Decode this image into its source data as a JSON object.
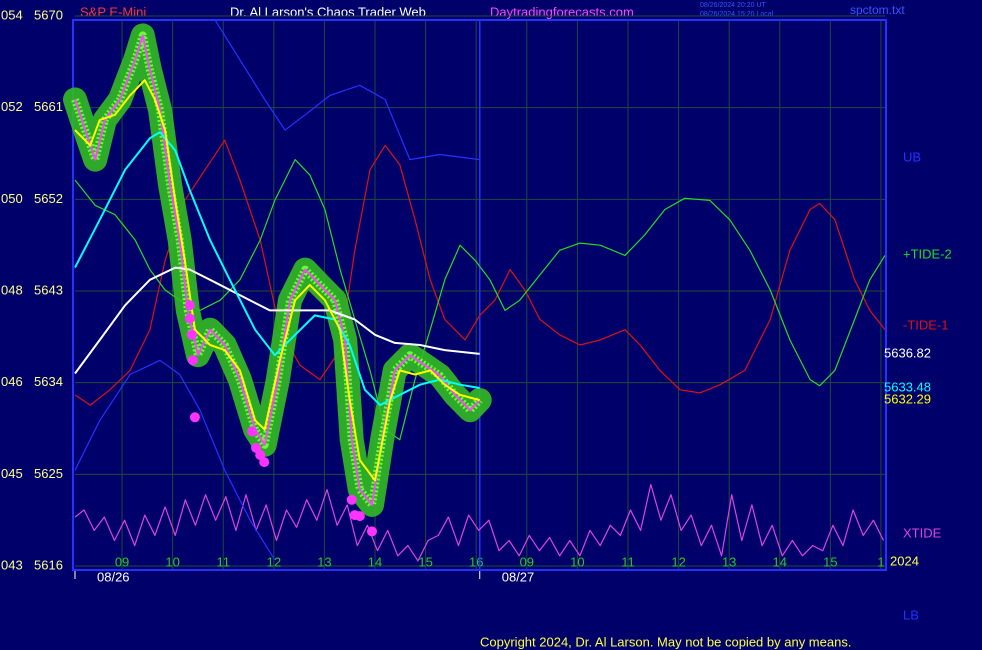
{
  "chart_data": {
    "type": "line",
    "symbol": "S&P E-Mini",
    "title": "Dr. Al Larson's Chaos Trader Web",
    "site": "Daytradingforecasts.com",
    "timestamps": [
      "08/26/2024 20:20 UT",
      "08/26/2024 15:20 Local"
    ],
    "file": "spctom.txt",
    "copyright": "Copyright 2024, Dr. Al Larson. May not be copied by any means.",
    "year": "2024",
    "ylim": [
      5616,
      5670
    ],
    "yticks": [
      5616,
      5625,
      5634,
      5643,
      5652,
      5661,
      5670
    ],
    "left_codes": [
      "043",
      "045",
      "046",
      "048",
      "050",
      "052",
      "054"
    ],
    "xlim": [
      -0.93,
      15.08
    ],
    "xticks": [
      {
        "value": 0,
        "label": "09"
      },
      {
        "value": 1,
        "label": "10"
      },
      {
        "value": 2,
        "label": "11"
      },
      {
        "value": 3,
        "label": "12"
      },
      {
        "value": 4,
        "label": "13"
      },
      {
        "value": 5,
        "label": "14"
      },
      {
        "value": 6,
        "label": "15"
      },
      {
        "value": 7,
        "label": "16"
      },
      {
        "value": 8,
        "label": "09"
      },
      {
        "value": 9,
        "label": "10"
      },
      {
        "value": 10,
        "label": "11"
      },
      {
        "value": 11,
        "label": "12"
      },
      {
        "value": 12,
        "label": "13"
      },
      {
        "value": 13,
        "label": "14"
      },
      {
        "value": 14,
        "label": "15"
      },
      {
        "value": 15,
        "label": "1"
      }
    ],
    "date_ticks": [
      {
        "value": -0.93,
        "label": "08/26"
      },
      {
        "value": 7.07,
        "label": "08/27"
      }
    ],
    "grid": true,
    "series": [
      {
        "color": "#ff44ff",
        "glow": true,
        "x": [
          -0.93,
          -0.73,
          -0.53,
          -0.34,
          -0.04,
          0.26,
          0.41,
          0.55,
          0.75,
          0.95,
          1.14,
          1.3,
          1.5,
          1.74,
          2.03,
          2.33,
          2.63,
          2.82,
          3.08,
          3.32,
          3.62,
          3.91,
          4.21,
          4.41,
          4.54,
          4.7,
          4.94,
          5.14,
          5.39,
          5.69,
          5.99,
          6.28,
          6.58,
          6.88,
          7.07
        ],
        "values": [
          5661.8,
          5658.8,
          5655.9,
          5659.8,
          5661.8,
          5665.7,
          5668.1,
          5664.7,
          5660.8,
          5653.4,
          5648.0,
          5641.1,
          5636.7,
          5639.2,
          5637.7,
          5634.3,
          5629.4,
          5627.9,
          5634.3,
          5642.1,
          5645.1,
          5643.6,
          5642.1,
          5638.2,
          5628.4,
          5623.5,
          5622.0,
          5628.4,
          5635.2,
          5636.7,
          5635.7,
          5634.7,
          5632.8,
          5631.3,
          5632.3
        ]
      },
      {
        "color": "#ffff00",
        "show_last": true,
        "x": [
          -0.93,
          -0.63,
          -0.44,
          -0.14,
          0.16,
          0.45,
          0.65,
          0.85,
          1.05,
          1.24,
          1.44,
          1.74,
          2.03,
          2.33,
          2.63,
          2.82,
          3.12,
          3.42,
          3.71,
          4.01,
          4.31,
          4.5,
          4.7,
          5.0,
          5.3,
          5.49,
          5.79,
          6.09,
          6.38,
          6.68,
          7.07
        ],
        "values": [
          5658.8,
          5657.3,
          5659.8,
          5660.3,
          5662.2,
          5663.7,
          5661.8,
          5658.8,
          5651.9,
          5646.0,
          5639.2,
          5637.7,
          5637.2,
          5635.2,
          5630.3,
          5629.4,
          5636.2,
          5642.1,
          5643.6,
          5642.1,
          5639.2,
          5632.3,
          5626.4,
          5624.4,
          5632.3,
          5635.2,
          5634.8,
          5635.2,
          5633.8,
          5632.8,
          5632.29
        ]
      },
      {
        "color": "#00ffff",
        "show_last": true,
        "x": [
          -0.93,
          -0.44,
          0.06,
          0.55,
          0.75,
          1.05,
          1.34,
          1.74,
          2.13,
          2.63,
          3.02,
          3.42,
          3.81,
          4.21,
          4.5,
          4.8,
          5.1,
          5.49,
          5.89,
          6.28,
          6.68,
          7.07
        ],
        "values": [
          5645.3,
          5650.0,
          5654.9,
          5658.0,
          5658.6,
          5656.8,
          5652.9,
          5648.0,
          5644.1,
          5639.2,
          5636.7,
          5638.7,
          5640.6,
          5640.2,
          5637.7,
          5633.3,
          5631.8,
          5632.8,
          5633.8,
          5634.3,
          5633.8,
          5633.48
        ]
      },
      {
        "color": "#ffffff",
        "show_last": true,
        "x": [
          -0.93,
          -0.44,
          0.06,
          0.55,
          1.05,
          1.34,
          1.74,
          2.33,
          2.92,
          3.52,
          4.11,
          4.6,
          5.0,
          5.39,
          5.89,
          6.38,
          7.07
        ],
        "values": [
          5634.9,
          5638.2,
          5641.6,
          5644.1,
          5645.3,
          5645.1,
          5644.1,
          5642.6,
          5641.1,
          5641.1,
          5641.1,
          5640.2,
          5638.7,
          5637.9,
          5637.7,
          5637.2,
          5636.82
        ]
      },
      {
        "name": "UB",
        "color": "#2233ff",
        "x": [
          1.84,
          2.33,
          2.82,
          3.22,
          3.62,
          4.11,
          4.7,
          5.2,
          5.69,
          6.28,
          7.07
        ],
        "values": [
          5669.6,
          5665.7,
          5661.8,
          5658.8,
          5660.3,
          5662.2,
          5663.2,
          5661.8,
          5655.9,
          5656.4,
          5655.9
        ]
      },
      {
        "name": "LB",
        "color": "#2233ff",
        "x": [
          -0.93,
          -0.44,
          0.16,
          0.75,
          1.14,
          1.54,
          2.03,
          2.53,
          3.02
        ],
        "values": [
          5625.4,
          5630.3,
          5634.8,
          5636.2,
          5634.8,
          5631.3,
          5625.4,
          5620.5,
          5616.6
        ]
      },
      {
        "name": "-TIDE-1",
        "color": "#dd1111",
        "x": [
          -0.93,
          -0.63,
          -0.24,
          0.16,
          0.55,
          0.85,
          1.24,
          1.64,
          2.03,
          2.33,
          2.73,
          3.12,
          3.52,
          3.91,
          4.31,
          4.6,
          4.9,
          5.2,
          5.49,
          5.79,
          6.09,
          6.38,
          6.78,
          7.07,
          7.37,
          7.67,
          7.96,
          8.26,
          8.65,
          9.05,
          9.45,
          9.94,
          10.24,
          10.63,
          11.03,
          11.42,
          11.82,
          12.31,
          12.81,
          13.2,
          13.6,
          13.79,
          14.09,
          14.48,
          14.78,
          15.08
        ],
        "values": [
          5632.8,
          5631.8,
          5633.3,
          5635.2,
          5639.2,
          5646.0,
          5651.9,
          5654.9,
          5657.8,
          5653.9,
          5648.0,
          5639.2,
          5635.7,
          5634.3,
          5637.2,
          5647.0,
          5654.9,
          5657.3,
          5655.4,
          5650.0,
          5644.1,
          5640.2,
          5638.2,
          5640.6,
          5642.1,
          5645.1,
          5643.1,
          5640.2,
          5638.7,
          5637.7,
          5638.2,
          5639.2,
          5637.7,
          5635.2,
          5633.3,
          5633.0,
          5633.8,
          5635.2,
          5640.2,
          5647.0,
          5651.0,
          5651.6,
          5650.0,
          5644.1,
          5641.1,
          5639.2
        ]
      },
      {
        "name": "+TIDE-2",
        "color": "#22dd22",
        "x": [
          -0.93,
          -0.53,
          -0.14,
          0.26,
          0.55,
          0.85,
          1.14,
          1.54,
          1.94,
          2.33,
          2.73,
          3.02,
          3.42,
          3.71,
          4.01,
          4.31,
          4.6,
          4.9,
          5.2,
          5.49,
          5.79,
          6.09,
          6.38,
          6.68,
          6.98,
          7.27,
          7.57,
          7.86,
          8.26,
          8.65,
          9.05,
          9.45,
          9.94,
          10.33,
          10.73,
          11.12,
          11.62,
          12.01,
          12.41,
          12.81,
          13.2,
          13.6,
          13.79,
          14.09,
          14.48,
          14.78,
          15.08
        ],
        "values": [
          5653.9,
          5651.4,
          5650.5,
          5648.0,
          5645.1,
          5643.1,
          5642.1,
          5641.1,
          5642.1,
          5644.1,
          5648.0,
          5651.9,
          5655.9,
          5654.4,
          5651.0,
          5645.1,
          5640.2,
          5635.2,
          5629.4,
          5628.4,
          5634.3,
          5639.2,
          5644.1,
          5647.5,
          5646.0,
          5644.1,
          5641.1,
          5642.1,
          5644.6,
          5647.0,
          5647.7,
          5647.5,
          5646.5,
          5648.5,
          5651.0,
          5652.1,
          5651.9,
          5650.0,
          5647.0,
          5643.1,
          5638.2,
          5634.3,
          5633.7,
          5635.2,
          5640.2,
          5644.1,
          5646.5
        ]
      },
      {
        "name": "XTIDE",
        "color": "#dd44dd",
        "x": [
          -0.93,
          -0.75,
          -0.55,
          -0.35,
          -0.15,
          0.05,
          0.25,
          0.45,
          0.65,
          0.85,
          1.05,
          1.25,
          1.45,
          1.65,
          1.85,
          2.05,
          2.25,
          2.45,
          2.65,
          2.85,
          3.05,
          3.25,
          3.45,
          3.65,
          3.85,
          4.05,
          4.25,
          4.45,
          4.65,
          4.85,
          5.05,
          5.25,
          5.45,
          5.65,
          5.85,
          6.05,
          6.25,
          6.45,
          6.65,
          6.85,
          7.05,
          7.25,
          7.45,
          7.65,
          7.85,
          8.05,
          8.25,
          8.45,
          8.65,
          8.85,
          9.05,
          9.25,
          9.45,
          9.65,
          9.85,
          10.05,
          10.25,
          10.45,
          10.65,
          10.85,
          11.05,
          11.25,
          11.45,
          11.65,
          11.85,
          12.05,
          12.25,
          12.45,
          12.65,
          12.85,
          13.05,
          13.25,
          13.45,
          13.65,
          13.85,
          14.05,
          14.25,
          14.45,
          14.65,
          14.85,
          15.05
        ],
        "values": [
          5620.8,
          5621.5,
          5619.5,
          5620.8,
          5618.5,
          5620.5,
          5618.0,
          5621.0,
          5619.0,
          5621.8,
          5619.0,
          5622.5,
          5620.0,
          5623.0,
          5620.5,
          5622.8,
          5619.5,
          5623.0,
          5619.5,
          5622.0,
          5618.5,
          5621.5,
          5619.8,
          5622.5,
          5620.5,
          5623.5,
          5620.0,
          5622.0,
          5618.0,
          5620.0,
          5617.5,
          5619.5,
          5617.0,
          5618.0,
          5616.5,
          5618.5,
          5619.0,
          5620.8,
          5618.0,
          5621.0,
          5619.5,
          5620.5,
          5617.5,
          5618.5,
          5617.0,
          5619.0,
          5617.5,
          5618.8,
          5617.0,
          5618.5,
          5617.0,
          5619.5,
          5618.0,
          5620.0,
          5619.0,
          5621.5,
          5619.5,
          5624.0,
          5620.5,
          5623.0,
          5619.5,
          5621.0,
          5618.0,
          5620.0,
          5617.0,
          5623.0,
          5618.5,
          5622.0,
          5618.0,
          5620.0,
          5617.0,
          5618.5,
          5617.0,
          5618.0,
          5617.5,
          5620.0,
          5618.0,
          5621.5,
          5619.0,
          5620.5,
          5618.5
        ]
      }
    ],
    "markers": {
      "color": "#ff33ff",
      "x": [
        1.34,
        1.34,
        1.38,
        1.4,
        1.44,
        2.57,
        2.65,
        2.73,
        2.81,
        4.54,
        4.6,
        4.7,
        4.94
      ],
      "values": [
        5641.6,
        5640.3,
        5638.7,
        5636.2,
        5630.6,
        5629.2,
        5627.6,
        5626.9,
        5626.2,
        5622.5,
        5621.0,
        5620.9,
        5619.4
      ]
    }
  }
}
